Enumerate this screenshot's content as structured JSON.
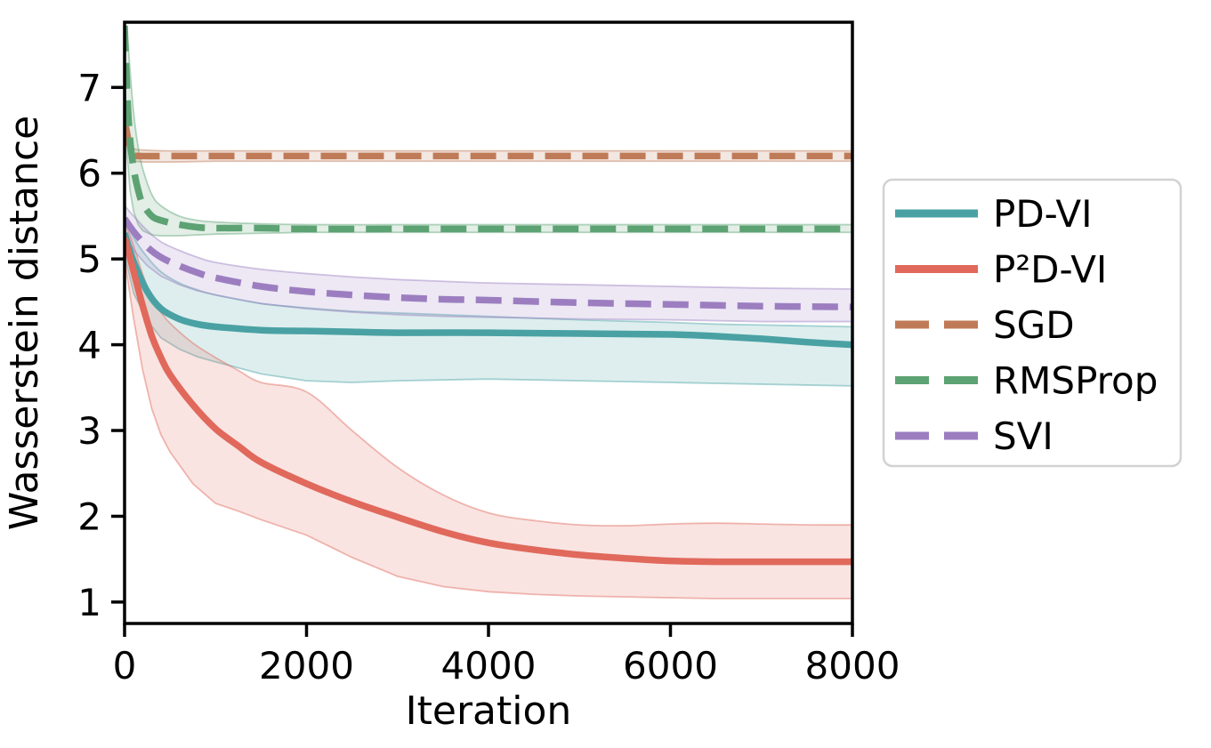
{
  "figure": {
    "background": "#ffffff",
    "axis_color": "#000000"
  },
  "chart_data": {
    "type": "line",
    "title": "",
    "xlabel": "Iteration",
    "ylabel": "Wasserstein distance",
    "xlim": [
      0,
      8000
    ],
    "ylim": [
      0.75,
      7.76
    ],
    "x_ticks": [
      0,
      2000,
      4000,
      6000,
      8000
    ],
    "y_ticks": [
      1,
      2,
      3,
      4,
      5,
      6,
      7
    ],
    "grid": false,
    "legend_position": "right-outside",
    "band_alpha": 0.18,
    "series": [
      {
        "name": "PD-VI",
        "color": "#4aa1a3",
        "style": "solid",
        "x": [
          0,
          100,
          250,
          400,
          600,
          800,
          1000,
          1500,
          2000,
          2500,
          3000,
          4000,
          5000,
          6000,
          6500,
          7000,
          7500,
          8000
        ],
        "y": [
          5.3,
          4.97,
          4.62,
          4.42,
          4.3,
          4.24,
          4.21,
          4.17,
          4.16,
          4.15,
          4.14,
          4.14,
          4.13,
          4.12,
          4.1,
          4.07,
          4.03,
          4.0
        ],
        "band_upper": [
          5.5,
          5.25,
          5.02,
          4.85,
          4.72,
          4.64,
          4.58,
          4.48,
          4.43,
          4.39,
          4.37,
          4.33,
          4.29,
          4.26,
          4.24,
          4.23,
          4.22,
          4.21
        ],
        "band_lower": [
          5.05,
          4.6,
          4.28,
          4.08,
          3.95,
          3.86,
          3.8,
          3.66,
          3.58,
          3.56,
          3.58,
          3.6,
          3.58,
          3.56,
          3.55,
          3.54,
          3.53,
          3.52
        ]
      },
      {
        "name": "P²D-VI",
        "color": "#e0695c",
        "style": "solid",
        "x": [
          0,
          100,
          200,
          300,
          400,
          500,
          750,
          1000,
          1250,
          1500,
          2000,
          2500,
          3000,
          3500,
          4000,
          4500,
          5000,
          5500,
          6000,
          6500,
          7000,
          7500,
          8000
        ],
        "y": [
          5.25,
          4.85,
          4.45,
          4.1,
          3.85,
          3.65,
          3.3,
          3.02,
          2.82,
          2.63,
          2.38,
          2.17,
          1.99,
          1.82,
          1.69,
          1.61,
          1.55,
          1.51,
          1.48,
          1.47,
          1.47,
          1.47,
          1.47
        ],
        "band_upper": [
          5.45,
          5.15,
          4.82,
          4.55,
          4.38,
          4.25,
          4.02,
          3.85,
          3.7,
          3.56,
          3.45,
          3.0,
          2.57,
          2.25,
          2.04,
          1.95,
          1.9,
          1.89,
          1.91,
          1.92,
          1.91,
          1.9,
          1.9
        ],
        "band_lower": [
          5.0,
          4.3,
          3.7,
          3.25,
          2.95,
          2.75,
          2.38,
          2.15,
          2.06,
          1.96,
          1.78,
          1.52,
          1.3,
          1.18,
          1.12,
          1.09,
          1.07,
          1.06,
          1.05,
          1.04,
          1.04,
          1.04,
          1.04
        ]
      },
      {
        "name": "SGD",
        "color": "#bf7b57",
        "style": "dashed",
        "x": [
          0,
          30,
          60,
          100,
          200,
          500,
          1000,
          2000,
          4000,
          6000,
          8000
        ],
        "y": [
          6.62,
          6.45,
          6.28,
          6.21,
          6.2,
          6.2,
          6.2,
          6.2,
          6.2,
          6.2,
          6.2
        ],
        "band_upper": [
          6.72,
          6.55,
          6.38,
          6.29,
          6.27,
          6.26,
          6.26,
          6.26,
          6.26,
          6.26,
          6.26
        ],
        "band_lower": [
          6.5,
          6.3,
          6.18,
          6.14,
          6.13,
          6.13,
          6.14,
          6.14,
          6.14,
          6.14,
          6.14
        ]
      },
      {
        "name": "RMSProp",
        "color": "#5da273",
        "style": "dashed",
        "x": [
          0,
          30,
          60,
          100,
          150,
          200,
          300,
          400,
          600,
          800,
          1000,
          1500,
          2000,
          3000,
          4000,
          5000,
          6000,
          7000,
          8000
        ],
        "y": [
          7.72,
          6.9,
          6.4,
          6.05,
          5.8,
          5.64,
          5.5,
          5.45,
          5.4,
          5.37,
          5.36,
          5.36,
          5.35,
          5.35,
          5.35,
          5.35,
          5.35,
          5.35,
          5.35
        ],
        "band_upper": [
          7.76,
          7.6,
          7.2,
          6.7,
          6.3,
          6.05,
          5.75,
          5.62,
          5.5,
          5.45,
          5.43,
          5.41,
          5.4,
          5.4,
          5.4,
          5.4,
          5.4,
          5.4,
          5.4
        ],
        "band_lower": [
          7.3,
          6.2,
          5.8,
          5.55,
          5.4,
          5.33,
          5.28,
          5.27,
          5.27,
          5.28,
          5.29,
          5.3,
          5.31,
          5.31,
          5.31,
          5.31,
          5.31,
          5.31,
          5.31
        ]
      },
      {
        "name": "SVI",
        "color": "#9c7ec0",
        "style": "dashed",
        "x": [
          0,
          100,
          250,
          400,
          600,
          800,
          1000,
          1500,
          2000,
          2500,
          3000,
          3500,
          4000,
          5000,
          6000,
          7000,
          8000
        ],
        "y": [
          5.47,
          5.32,
          5.14,
          5.02,
          4.92,
          4.84,
          4.78,
          4.68,
          4.62,
          4.58,
          4.55,
          4.53,
          4.52,
          4.49,
          4.47,
          4.45,
          4.44
        ],
        "band_upper": [
          5.62,
          5.5,
          5.33,
          5.2,
          5.1,
          5.02,
          4.96,
          4.88,
          4.83,
          4.79,
          4.76,
          4.74,
          4.72,
          4.7,
          4.68,
          4.66,
          4.65
        ],
        "band_lower": [
          5.3,
          5.1,
          4.92,
          4.8,
          4.7,
          4.63,
          4.58,
          4.48,
          4.42,
          4.38,
          4.35,
          4.33,
          4.32,
          4.3,
          4.29,
          4.27,
          4.27
        ]
      }
    ],
    "legend": {
      "entries": [
        "PD-VI",
        "P²D-VI",
        "SGD",
        "RMSProp",
        "SVI"
      ],
      "border_color": "#d2d2d2",
      "fill": "#ffffff"
    }
  }
}
